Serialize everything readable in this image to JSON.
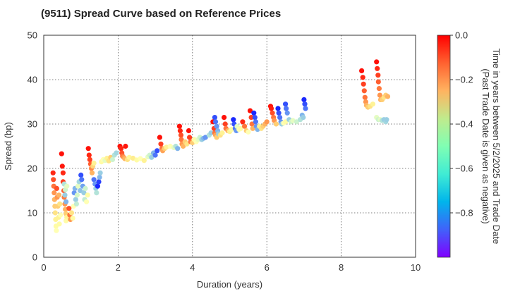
{
  "chart_data": {
    "type": "scatter",
    "title": "(9511)   Spread Curve based on Reference Prices",
    "xlabel": "Duration (years)",
    "ylabel": "Spread (bp)",
    "xlim": [
      0,
      10
    ],
    "ylim": [
      0,
      50
    ],
    "xticks": [
      0,
      2,
      4,
      6,
      8,
      10
    ],
    "yticks": [
      0,
      10,
      20,
      30,
      40,
      50
    ],
    "grid": true,
    "colorbar": {
      "label_line1": "Time in years between 5/2/2025 and Trade Date",
      "label_line2": "(Past Trade Date is given as negative)",
      "range": [
        -1.0,
        0.0
      ],
      "ticks": [
        0.0,
        -0.2,
        -0.4,
        -0.6,
        -0.8
      ],
      "tick_labels": [
        "0.0",
        "−0.2",
        "−0.4",
        "−0.6",
        "−0.8"
      ],
      "colormap": "rainbow"
    },
    "points": [
      [
        0.25,
        19.0,
        -0.05
      ],
      [
        0.26,
        17.5,
        -0.1
      ],
      [
        0.27,
        16.0,
        -0.15
      ],
      [
        0.28,
        14.5,
        -0.2
      ],
      [
        0.29,
        13.0,
        -0.25
      ],
      [
        0.3,
        11.5,
        -0.3
      ],
      [
        0.31,
        10.0,
        -0.35
      ],
      [
        0.32,
        8.5,
        -0.4
      ],
      [
        0.33,
        7.0,
        -0.45
      ],
      [
        0.34,
        6.0,
        -0.5
      ],
      [
        0.35,
        15.5,
        -0.1
      ],
      [
        0.36,
        13.5,
        -0.2
      ],
      [
        0.38,
        11.5,
        -0.3
      ],
      [
        0.4,
        9.0,
        -0.4
      ],
      [
        0.42,
        7.5,
        -0.45
      ],
      [
        0.45,
        9.5,
        -0.5
      ],
      [
        0.43,
        12.0,
        -0.35
      ],
      [
        0.41,
        14.0,
        -0.25
      ],
      [
        0.48,
        23.3,
        -0.02
      ],
      [
        0.5,
        20.5,
        -0.03
      ],
      [
        0.52,
        19.0,
        -0.05
      ],
      [
        0.52,
        17.0,
        -0.08
      ],
      [
        0.54,
        15.0,
        -0.12
      ],
      [
        0.55,
        13.5,
        -0.16
      ],
      [
        0.57,
        12.0,
        -0.2
      ],
      [
        0.58,
        10.8,
        -0.25
      ],
      [
        0.6,
        9.8,
        -0.3
      ],
      [
        0.62,
        9.0,
        -0.4
      ],
      [
        0.6,
        8.2,
        -0.45
      ],
      [
        0.55,
        16.5,
        -0.65
      ],
      [
        0.57,
        14.0,
        -0.7
      ],
      [
        0.6,
        12.5,
        -0.75
      ],
      [
        0.58,
        15.2,
        -0.6
      ],
      [
        0.62,
        16.0,
        -0.55
      ],
      [
        0.68,
        11.0,
        -0.1
      ],
      [
        0.7,
        9.5,
        -0.15
      ],
      [
        0.72,
        8.5,
        -0.2
      ],
      [
        0.75,
        10.0,
        -0.35
      ],
      [
        0.78,
        8.8,
        -0.45
      ],
      [
        0.8,
        11.5,
        -0.5
      ],
      [
        0.82,
        14.5,
        -0.8
      ],
      [
        0.84,
        15.5,
        -0.75
      ],
      [
        0.86,
        13.0,
        -0.7
      ],
      [
        0.88,
        12.0,
        -0.62
      ],
      [
        0.9,
        14.0,
        -0.58
      ],
      [
        0.92,
        16.0,
        -0.55
      ],
      [
        0.95,
        17.0,
        -0.68
      ],
      [
        0.98,
        15.0,
        -0.72
      ],
      [
        1.0,
        18.5,
        -0.9
      ],
      [
        1.02,
        17.5,
        -0.85
      ],
      [
        1.05,
        16.0,
        -0.78
      ],
      [
        1.08,
        14.5,
        -0.7
      ],
      [
        1.1,
        13.0,
        -0.62
      ],
      [
        1.12,
        15.5,
        -0.6
      ],
      [
        1.15,
        12.5,
        -0.5
      ],
      [
        1.18,
        14.0,
        -0.45
      ],
      [
        1.2,
        24.5,
        -0.02
      ],
      [
        1.22,
        23.0,
        -0.05
      ],
      [
        1.24,
        22.0,
        -0.08
      ],
      [
        1.26,
        21.0,
        -0.12
      ],
      [
        1.28,
        20.0,
        -0.18
      ],
      [
        1.3,
        19.0,
        -0.25
      ],
      [
        1.32,
        20.5,
        -0.32
      ],
      [
        1.35,
        21.2,
        -0.4
      ],
      [
        1.35,
        17.5,
        -0.85
      ],
      [
        1.38,
        16.5,
        -0.8
      ],
      [
        1.4,
        15.5,
        -0.7
      ],
      [
        1.42,
        14.5,
        -0.65
      ],
      [
        1.45,
        16.0,
        -0.95
      ],
      [
        1.48,
        17.0,
        -0.92
      ],
      [
        1.5,
        18.0,
        -0.75
      ],
      [
        1.52,
        19.0,
        -0.7
      ],
      [
        1.55,
        21.5,
        -0.45
      ],
      [
        1.6,
        22.0,
        -0.5
      ],
      [
        1.65,
        21.8,
        -0.55
      ],
      [
        1.7,
        22.3,
        -0.4
      ],
      [
        1.75,
        21.7,
        -0.35
      ],
      [
        1.8,
        22.5,
        -0.3
      ],
      [
        1.85,
        22.0,
        -0.6
      ],
      [
        1.9,
        23.0,
        -0.65
      ],
      [
        1.95,
        23.5,
        -0.68
      ],
      [
        2.05,
        25.0,
        -0.02
      ],
      [
        2.08,
        24.5,
        -0.05
      ],
      [
        2.1,
        23.5,
        -0.1
      ],
      [
        2.12,
        22.8,
        -0.15
      ],
      [
        2.15,
        22.5,
        -0.2
      ],
      [
        2.18,
        22.2,
        -0.25
      ],
      [
        2.2,
        25.0,
        -0.03
      ],
      [
        2.25,
        22.0,
        -0.35
      ],
      [
        2.3,
        22.5,
        -0.42
      ],
      [
        2.4,
        22.3,
        -0.38
      ],
      [
        2.5,
        21.9,
        -0.45
      ],
      [
        2.6,
        22.2,
        -0.5
      ],
      [
        2.7,
        21.8,
        -0.4
      ],
      [
        2.8,
        22.6,
        -0.55
      ],
      [
        2.85,
        23.0,
        -0.6
      ],
      [
        2.9,
        22.5,
        -0.7
      ],
      [
        2.95,
        23.5,
        -0.75
      ],
      [
        3.0,
        23.0,
        -0.85
      ],
      [
        3.05,
        24.0,
        -0.9
      ],
      [
        3.12,
        27.0,
        -0.02
      ],
      [
        3.15,
        25.5,
        -0.08
      ],
      [
        3.18,
        24.5,
        -0.15
      ],
      [
        3.2,
        24.0,
        -0.22
      ],
      [
        3.25,
        24.5,
        -0.3
      ],
      [
        3.3,
        24.8,
        -0.4
      ],
      [
        3.4,
        25.0,
        -0.5
      ],
      [
        3.5,
        24.7,
        -0.55
      ],
      [
        3.55,
        25.0,
        -0.65
      ],
      [
        3.6,
        24.5,
        -0.75
      ],
      [
        3.65,
        29.5,
        -0.02
      ],
      [
        3.67,
        28.5,
        -0.05
      ],
      [
        3.69,
        27.5,
        -0.1
      ],
      [
        3.7,
        26.5,
        -0.15
      ],
      [
        3.72,
        25.5,
        -0.2
      ],
      [
        3.75,
        25.0,
        -0.25
      ],
      [
        3.8,
        26.0,
        -0.3
      ],
      [
        3.85,
        25.5,
        -0.35
      ],
      [
        3.9,
        28.5,
        -0.02
      ],
      [
        3.92,
        27.0,
        -0.08
      ],
      [
        3.95,
        26.0,
        -0.15
      ],
      [
        4.0,
        25.8,
        -0.3
      ],
      [
        4.05,
        26.5,
        -0.45
      ],
      [
        4.1,
        26.0,
        -0.5
      ],
      [
        4.15,
        26.5,
        -0.55
      ],
      [
        4.2,
        27.0,
        -0.6
      ],
      [
        4.25,
        26.5,
        -0.7
      ],
      [
        4.3,
        26.8,
        -0.75
      ],
      [
        4.35,
        27.0,
        -0.8
      ],
      [
        4.45,
        27.5,
        -0.65
      ],
      [
        4.5,
        28.0,
        -0.7
      ],
      [
        4.55,
        30.5,
        -0.02
      ],
      [
        4.58,
        29.0,
        -0.08
      ],
      [
        4.6,
        28.0,
        -0.15
      ],
      [
        4.62,
        27.5,
        -0.22
      ],
      [
        4.65,
        27.0,
        -0.3
      ],
      [
        4.6,
        31.5,
        -0.9
      ],
      [
        4.62,
        30.5,
        -0.85
      ],
      [
        4.65,
        29.5,
        -0.8
      ],
      [
        4.68,
        28.5,
        -0.75
      ],
      [
        4.7,
        27.8,
        -0.7
      ],
      [
        4.75,
        27.5,
        -0.35
      ],
      [
        4.8,
        28.0,
        -0.4
      ],
      [
        4.85,
        31.5,
        -0.02
      ],
      [
        4.88,
        30.0,
        -0.08
      ],
      [
        4.9,
        29.0,
        -0.15
      ],
      [
        4.95,
        28.5,
        -0.25
      ],
      [
        5.0,
        28.3,
        -0.4
      ],
      [
        5.05,
        28.8,
        -0.45
      ],
      [
        5.1,
        31.0,
        -0.95
      ],
      [
        5.12,
        30.0,
        -0.9
      ],
      [
        5.15,
        29.0,
        -0.85
      ],
      [
        5.18,
        28.5,
        -0.8
      ],
      [
        5.2,
        29.5,
        -0.55
      ],
      [
        5.25,
        28.8,
        -0.5
      ],
      [
        5.3,
        29.0,
        -0.45
      ],
      [
        5.35,
        30.5,
        -0.05
      ],
      [
        5.4,
        29.5,
        -0.15
      ],
      [
        5.45,
        28.5,
        -0.3
      ],
      [
        5.5,
        28.2,
        -0.5
      ],
      [
        5.55,
        33.0,
        -0.02
      ],
      [
        5.58,
        31.5,
        -0.08
      ],
      [
        5.6,
        30.0,
        -0.15
      ],
      [
        5.62,
        29.0,
        -0.25
      ],
      [
        5.65,
        32.5,
        -0.95
      ],
      [
        5.68,
        31.5,
        -0.9
      ],
      [
        5.7,
        30.5,
        -0.85
      ],
      [
        5.72,
        29.5,
        -0.8
      ],
      [
        5.75,
        28.8,
        -0.75
      ],
      [
        5.8,
        29.5,
        -0.4
      ],
      [
        5.85,
        29.0,
        -0.35
      ],
      [
        5.9,
        29.5,
        -0.3
      ],
      [
        5.95,
        30.0,
        -0.25
      ],
      [
        6.0,
        30.5,
        -0.2
      ],
      [
        6.1,
        34.0,
        -0.02
      ],
      [
        6.12,
        33.5,
        -0.04
      ],
      [
        6.15,
        32.5,
        -0.1
      ],
      [
        6.18,
        31.5,
        -0.15
      ],
      [
        6.2,
        30.8,
        -0.2
      ],
      [
        6.25,
        30.0,
        -0.3
      ],
      [
        6.3,
        33.5,
        -0.95
      ],
      [
        6.32,
        32.5,
        -0.9
      ],
      [
        6.35,
        31.5,
        -0.85
      ],
      [
        6.38,
        30.5,
        -0.8
      ],
      [
        6.4,
        30.0,
        -0.7
      ],
      [
        6.45,
        30.2,
        -0.5
      ],
      [
        6.5,
        30.5,
        -0.45
      ],
      [
        6.5,
        34.5,
        -0.9
      ],
      [
        6.52,
        33.5,
        -0.85
      ],
      [
        6.55,
        32.5,
        -0.8
      ],
      [
        6.6,
        31.0,
        -0.7
      ],
      [
        6.65,
        30.5,
        -0.6
      ],
      [
        6.7,
        30.8,
        -0.55
      ],
      [
        6.8,
        30.5,
        -0.6
      ],
      [
        6.9,
        31.0,
        -0.65
      ],
      [
        7.0,
        35.5,
        -0.95
      ],
      [
        7.02,
        34.5,
        -0.9
      ],
      [
        7.04,
        33.5,
        -0.85
      ],
      [
        6.95,
        32.0,
        -0.75
      ],
      [
        6.98,
        31.5,
        -0.7
      ],
      [
        8.55,
        42.0,
        -0.02
      ],
      [
        8.58,
        40.5,
        -0.05
      ],
      [
        8.6,
        39.0,
        -0.08
      ],
      [
        8.62,
        37.5,
        -0.12
      ],
      [
        8.64,
        36.0,
        -0.15
      ],
      [
        8.66,
        35.0,
        -0.2
      ],
      [
        8.68,
        34.2,
        -0.25
      ],
      [
        8.72,
        33.8,
        -0.3
      ],
      [
        8.78,
        34.0,
        -0.35
      ],
      [
        8.85,
        34.5,
        -0.4
      ],
      [
        8.95,
        44.0,
        -0.02
      ],
      [
        8.97,
        42.5,
        -0.05
      ],
      [
        8.99,
        41.0,
        -0.08
      ],
      [
        9.0,
        39.5,
        -0.12
      ],
      [
        9.02,
        38.0,
        -0.16
      ],
      [
        9.04,
        36.5,
        -0.2
      ],
      [
        9.06,
        35.5,
        -0.25
      ],
      [
        9.1,
        35.5,
        -0.3
      ],
      [
        9.15,
        36.0,
        -0.35
      ],
      [
        9.2,
        36.5,
        -0.3
      ],
      [
        9.25,
        36.2,
        -0.25
      ],
      [
        8.95,
        31.5,
        -0.55
      ],
      [
        9.0,
        31.0,
        -0.6
      ],
      [
        9.05,
        31.0,
        -0.55
      ],
      [
        9.1,
        30.8,
        -0.65
      ],
      [
        9.15,
        31.0,
        -0.7
      ],
      [
        9.2,
        30.5,
        -0.68
      ],
      [
        9.22,
        31.0,
        -0.7
      ]
    ]
  }
}
